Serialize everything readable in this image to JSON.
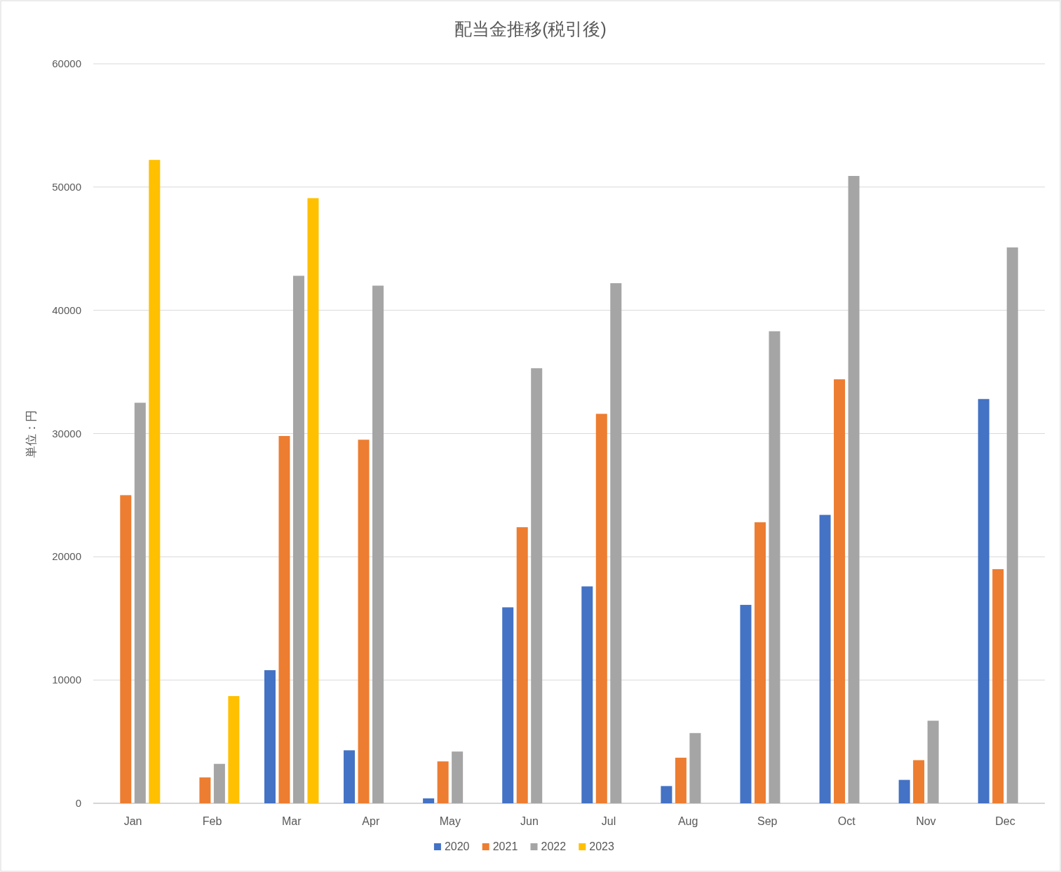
{
  "chart_data": {
    "type": "bar",
    "title": "配当金推移(税引後)",
    "ylabel": "単位：円",
    "categories": [
      "Jan",
      "Feb",
      "Mar",
      "Apr",
      "May",
      "Jun",
      "Jul",
      "Aug",
      "Sep",
      "Oct",
      "Nov",
      "Dec"
    ],
    "series": [
      {
        "name": "2020",
        "color": "#4472c4",
        "values": [
          null,
          null,
          10800,
          4300,
          400,
          15900,
          17600,
          1400,
          16100,
          23400,
          1900,
          32800
        ]
      },
      {
        "name": "2021",
        "color": "#ed7d31",
        "values": [
          25000,
          2100,
          29800,
          29500,
          3400,
          22400,
          31600,
          3700,
          22800,
          34400,
          3500,
          19000
        ]
      },
      {
        "name": "2022",
        "color": "#a5a5a5",
        "values": [
          32500,
          3200,
          42800,
          42000,
          4200,
          35300,
          42200,
          5700,
          38300,
          50900,
          6700,
          45100
        ]
      },
      {
        "name": "2023",
        "color": "#ffc000",
        "values": [
          52200,
          8700,
          49100,
          null,
          null,
          null,
          null,
          null,
          null,
          null,
          null,
          null
        ]
      }
    ],
    "ylim": [
      0,
      60000
    ],
    "yticks": [
      0,
      10000,
      20000,
      30000,
      40000,
      50000,
      60000
    ],
    "grid": "y",
    "legend": "bottom"
  }
}
